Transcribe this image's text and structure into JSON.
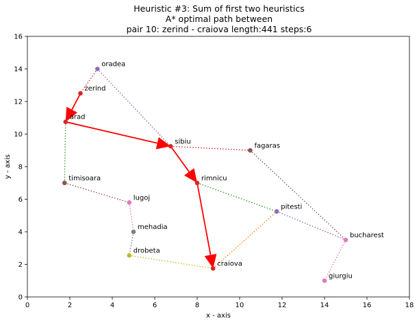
{
  "chart_data": {
    "type": "scatter",
    "title_lines": [
      "Heuristic #3: Sum of first two heuristics",
      "A* optimal path between",
      "pair 10: zerind - craiova length:441 steps:6"
    ],
    "xlabel": "x - axis",
    "ylabel": "y - axis",
    "xlim": [
      0,
      18
    ],
    "ylim": [
      0,
      16
    ],
    "xticks": [
      "0",
      "2",
      "4",
      "6",
      "8",
      "10",
      "12",
      "14",
      "16",
      "18"
    ],
    "yticks": [
      "0",
      "2",
      "4",
      "6",
      "8",
      "10",
      "12",
      "14",
      "16"
    ],
    "grid": false,
    "cities": [
      {
        "name": "oradea",
        "x": 3.3,
        "y": 14.0,
        "color": "#9467bd"
      },
      {
        "name": "zerind",
        "x": 2.5,
        "y": 12.5,
        "color": "#d62728"
      },
      {
        "name": "arad",
        "x": 1.8,
        "y": 10.75,
        "color": "#d62728"
      },
      {
        "name": "sibiu",
        "x": 6.75,
        "y": 9.25,
        "color": "#d62728"
      },
      {
        "name": "fagaras",
        "x": 10.5,
        "y": 9.0,
        "color": "#8c564b"
      },
      {
        "name": "timisoara",
        "x": 1.75,
        "y": 7.0,
        "color": "#8c564b"
      },
      {
        "name": "rimnicu",
        "x": 8.0,
        "y": 7.0,
        "color": "#d62728"
      },
      {
        "name": "lugoj",
        "x": 4.8,
        "y": 5.8,
        "color": "#e377c2"
      },
      {
        "name": "pitesti",
        "x": 11.75,
        "y": 5.25,
        "color": "#9467bd"
      },
      {
        "name": "mehadia",
        "x": 5.0,
        "y": 4.0,
        "color": "#7f7f7f"
      },
      {
        "name": "bucharest",
        "x": 15.0,
        "y": 3.5,
        "color": "#e377c2"
      },
      {
        "name": "drobeta",
        "x": 4.8,
        "y": 2.55,
        "color": "#bcbd22"
      },
      {
        "name": "craiova",
        "x": 8.75,
        "y": 1.75,
        "color": "#d62728"
      },
      {
        "name": "giurgiu",
        "x": 14.0,
        "y": 1.0,
        "color": "#e377c2"
      }
    ],
    "edges": [
      {
        "from": "oradea",
        "to": "zerind",
        "color": "#d62728"
      },
      {
        "from": "oradea",
        "to": "sibiu",
        "color": "#9467bd"
      },
      {
        "from": "zerind",
        "to": "arad",
        "color": "#d62728"
      },
      {
        "from": "arad",
        "to": "sibiu",
        "color": "#d62728"
      },
      {
        "from": "arad",
        "to": "timisoara",
        "color": "#2ca02c"
      },
      {
        "from": "timisoara",
        "to": "lugoj",
        "color": "#8c564b"
      },
      {
        "from": "lugoj",
        "to": "mehadia",
        "color": "#e377c2"
      },
      {
        "from": "mehadia",
        "to": "drobeta",
        "color": "#7f7f7f"
      },
      {
        "from": "drobeta",
        "to": "craiova",
        "color": "#bcbd22"
      },
      {
        "from": "sibiu",
        "to": "fagaras",
        "color": "#d62728"
      },
      {
        "from": "sibiu",
        "to": "rimnicu",
        "color": "#d62728"
      },
      {
        "from": "rimnicu",
        "to": "pitesti",
        "color": "#2ca02c"
      },
      {
        "from": "rimnicu",
        "to": "craiova",
        "color": "#d62728"
      },
      {
        "from": "craiova",
        "to": "pitesti",
        "color": "#ff7f0e"
      },
      {
        "from": "pitesti",
        "to": "bucharest",
        "color": "#9467bd"
      },
      {
        "from": "fagaras",
        "to": "bucharest",
        "color": "#8c564b"
      },
      {
        "from": "bucharest",
        "to": "giurgiu",
        "color": "#e377c2"
      }
    ],
    "path": [
      "zerind",
      "arad",
      "sibiu",
      "rimnicu",
      "craiova"
    ],
    "path_color": "#ff0000"
  }
}
